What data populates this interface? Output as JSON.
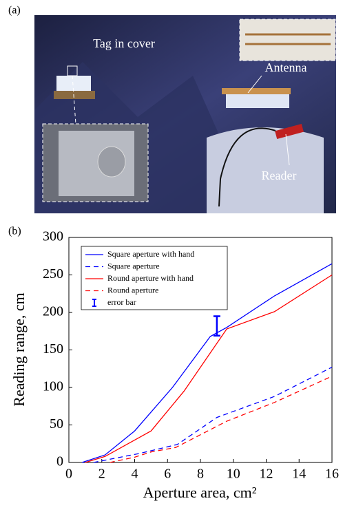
{
  "panel_a": {
    "label": "(a)",
    "annotations": [
      "Tag in cover",
      "Antenna",
      "Reader"
    ]
  },
  "chart_data": {
    "type": "line",
    "label": "(b)",
    "x_label": "Aperture area, cm²",
    "y_label": "Reading range, cm",
    "xlim": [
      0,
      16
    ],
    "xticks": [
      0,
      2,
      4,
      6,
      8,
      10,
      12,
      14,
      16
    ],
    "ylim": [
      0,
      300
    ],
    "yticks": [
      0,
      50,
      100,
      150,
      200,
      250,
      300
    ],
    "series": [
      {
        "name": "Square aperture with hand",
        "color": "#0000ff",
        "dashed": false,
        "x": [
          0.8,
          2.2,
          4.0,
          6.3,
          8.6,
          9.6,
          12.5,
          16
        ],
        "values": [
          0,
          10,
          42,
          100,
          168,
          180,
          222,
          265
        ]
      },
      {
        "name": "Square aperture",
        "color": "#0000ff",
        "dashed": true,
        "x": [
          1.5,
          4.3,
          6.6,
          9,
          12.5,
          16
        ],
        "values": [
          0,
          12,
          24,
          60,
          88,
          127
        ]
      },
      {
        "name": "Round aperture with hand",
        "color": "#ff0000",
        "dashed": false,
        "x": [
          1,
          2.2,
          5,
          7,
          9.6,
          12.5,
          16
        ],
        "values": [
          0,
          8,
          42,
          95,
          178,
          201,
          250
        ]
      },
      {
        "name": "Round aperture",
        "color": "#ff0000",
        "dashed": true,
        "x": [
          2.5,
          4,
          5,
          6.5,
          9.6,
          12.5,
          16
        ],
        "values": [
          0,
          7,
          14,
          20,
          55,
          80,
          115
        ]
      }
    ],
    "error_bar": {
      "name": "error bar",
      "color": "#0000ff",
      "x": 9,
      "value": 182,
      "error": 13
    }
  }
}
